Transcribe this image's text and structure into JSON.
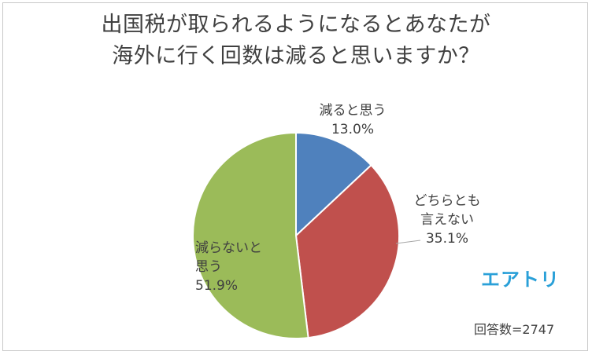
{
  "chart_data": {
    "type": "pie",
    "title_lines": [
      "出国税が取られるようになるとあなたが",
      "海外に行く回数は減ると思いますか？"
    ],
    "slices": [
      {
        "label_lines": [
          "減ると思う"
        ],
        "value": 13.0,
        "value_text": "13.0%",
        "color": "#4f81bd"
      },
      {
        "label_lines": [
          "どちらとも",
          "言えない"
        ],
        "value": 35.1,
        "value_text": "35.1%",
        "color": "#c0504d"
      },
      {
        "label_lines": [
          "減らないと",
          "思う"
        ],
        "value": 51.9,
        "value_text": "51.9%",
        "color": "#9bbb59"
      }
    ],
    "footnote": "回答数=2747",
    "logo_text": "エアトリ"
  }
}
